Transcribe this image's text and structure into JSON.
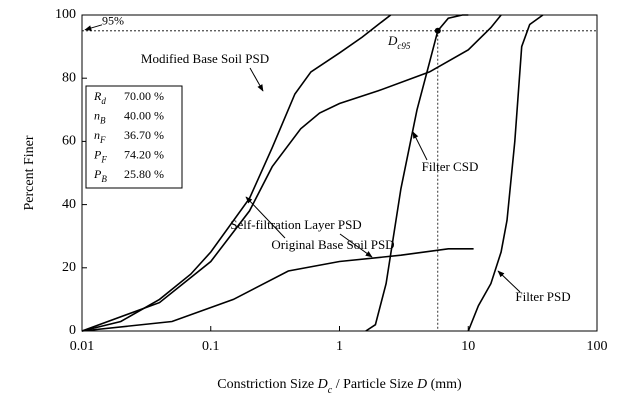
{
  "chart_data": {
    "type": "line",
    "xlabel": [
      "Constriction Size ",
      "D",
      "c",
      " / Particle Size ",
      "D",
      " (mm)"
    ],
    "ylabel": "Percent Finer",
    "xscale": "log",
    "xlim": [
      0.01,
      100
    ],
    "ylim": [
      0,
      100
    ],
    "xticks": [
      0.01,
      0.1,
      1,
      10,
      100
    ],
    "yticks": [
      0,
      20,
      40,
      60,
      80,
      100
    ],
    "color": "#000000",
    "series": [
      {
        "name": "Modified Base Soil PSD",
        "x": [
          0.01,
          0.02,
          0.04,
          0.07,
          0.1,
          0.2,
          0.3,
          0.45,
          0.6,
          1,
          1.5,
          2,
          2.5
        ],
        "values": [
          0,
          3,
          10,
          18,
          25,
          42,
          58,
          75,
          82,
          88,
          93,
          97,
          100
        ]
      },
      {
        "name": "Original Base Soil PSD",
        "x": [
          0.01,
          0.04,
          0.1,
          0.2,
          0.3,
          0.5,
          0.7,
          1,
          2,
          5,
          10,
          15,
          18
        ],
        "values": [
          0,
          9,
          22,
          38,
          52,
          64,
          69,
          72,
          76,
          82,
          89,
          96,
          100
        ]
      },
      {
        "name": "Self-filtration Layer PSD",
        "x": [
          0.01,
          0.05,
          0.15,
          0.4,
          1,
          3,
          7,
          11
        ],
        "values": [
          0,
          3,
          10,
          19,
          22,
          24,
          26,
          26
        ]
      },
      {
        "name": "Filter CSD",
        "x": [
          1.6,
          1.9,
          2.3,
          3,
          4,
          5,
          5.8,
          7,
          9,
          10
        ],
        "values": [
          0,
          2,
          15,
          45,
          70,
          85,
          95,
          99,
          100,
          100
        ]
      },
      {
        "name": "Filter PSD",
        "x": [
          10,
          12,
          15,
          18,
          20,
          23,
          26,
          30,
          38
        ],
        "values": [
          0,
          8,
          15,
          25,
          35,
          60,
          90,
          97,
          100
        ]
      }
    ],
    "reference": {
      "label": "95%",
      "y": 95,
      "x": 5.8,
      "point_label": [
        "D",
        "c95"
      ]
    },
    "parameters": [
      {
        "symbol": "R",
        "sub": "d",
        "value": "70.00 %"
      },
      {
        "symbol": "n",
        "sub": "B",
        "value": "40.00 %"
      },
      {
        "symbol": "n",
        "sub": "F",
        "value": "36.70 %"
      },
      {
        "symbol": "P",
        "sub": "F",
        "value": "74.20 %"
      },
      {
        "symbol": "P",
        "sub": "B",
        "value": "25.80 %"
      }
    ]
  }
}
